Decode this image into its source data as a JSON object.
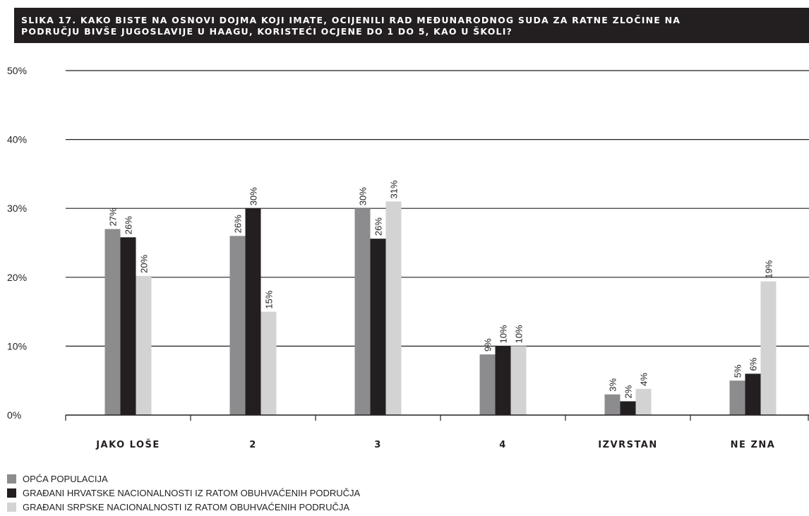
{
  "title_lines": [
    "SLIKA 17. KAKO BISTE NA OSNOVI DOJMA KOJI IMATE, OCIJENILI RAD MEĐUNARODNOG SUDA ZA RATNE ZLOČINE NA",
    "PODRUČJU BIVŠE JUGOSLAVIJE U HAAGU, KORISTEĆI OCJENE DO 1 DO 5, KAO U ŠKOLI?"
  ],
  "colors": {
    "title_background": "#231f20",
    "axis": "#231f20"
  },
  "chart_data": {
    "type": "bar",
    "title": "SLIKA 17. KAKO BISTE NA OSNOVI DOJMA KOJI IMATE, OCIJENILI RAD MEĐUNARODNOG SUDA ZA RATNE ZLOČINE NA PODRUČJU BIVŠE JUGOSLAVIJE U HAAGU, KORISTEĆI OCJENE DO 1 DO 5, KAO U ŠKOLI?",
    "categories": [
      "JAKO LOŠE",
      "2",
      "3",
      "4",
      "IZVRSTAN",
      "NE ZNA"
    ],
    "series": [
      {
        "name": "OPĆA POPULACIJA",
        "color": "#8c8c8e",
        "values": [
          27,
          26,
          30,
          9,
          3,
          5
        ],
        "plotted": [
          27,
          26,
          30,
          8.8,
          3,
          5
        ],
        "labels": [
          "27%",
          "26%",
          "30%",
          "9%",
          "3%",
          "5%"
        ]
      },
      {
        "name": "GRAĐANI HRVATSKE NACIONALNOSTI IZ RATOM OBUHVAĆENIH PODRUČJA",
        "color": "#231f20",
        "values": [
          26,
          30,
          26,
          10,
          2,
          6
        ],
        "plotted": [
          25.8,
          30,
          25.6,
          10,
          2,
          6
        ],
        "labels": [
          "26%",
          "30%",
          "26%",
          "10%",
          "2%",
          "6%"
        ]
      },
      {
        "name": "GRAĐANI SRPSKE NACIONALNOSTI IZ RATOM OBUHVAĆENIH PODRUČJA",
        "color": "#d3d3d4",
        "values": [
          20,
          15,
          31,
          10,
          4,
          19
        ],
        "plotted": [
          20.2,
          15,
          31,
          10,
          3.8,
          19.4
        ],
        "labels": [
          "20%",
          "15%",
          "31%",
          "10%",
          "4%",
          "19%"
        ]
      }
    ],
    "ylim": [
      0,
      50
    ],
    "yticks": [
      0,
      10,
      20,
      30,
      40,
      50
    ],
    "ytick_labels": [
      "0%",
      "10%",
      "20%",
      "30%",
      "40%",
      "50%"
    ],
    "grid": true,
    "legend_position": "bottom-left"
  }
}
